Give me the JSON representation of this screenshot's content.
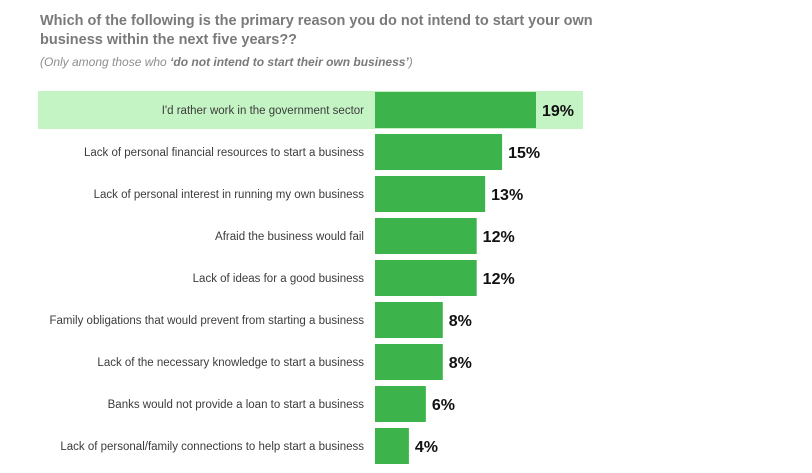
{
  "header": {
    "title": "Which of the following is the primary reason you do not intend to start your own business within the next five years??",
    "subtitle_prefix": "(Only among those who ",
    "subtitle_emphasis": "‘do not intend to start their own business’",
    "subtitle_suffix": ")"
  },
  "colors": {
    "bar": "#3cb44b",
    "highlight_band": "#c4f3c4"
  },
  "chart_data": {
    "type": "bar",
    "orientation": "horizontal",
    "categories": [
      "I'd rather work in the government sector",
      "Lack of personal financial resources to start a business",
      "Lack of personal interest in running my own business",
      "Afraid the business would fail",
      "Lack of ideas for a good business",
      "Family obligations that would prevent from starting a business",
      "Lack of the necessary knowledge to start a business",
      "Banks would not provide a loan to start a business",
      "Lack of personal/family connections to help start a business"
    ],
    "values": [
      19,
      15,
      13,
      12,
      12,
      8,
      8,
      6,
      4
    ],
    "value_labels": [
      "19%",
      "15%",
      "13%",
      "12%",
      "12%",
      "8%",
      "8%",
      "6%",
      "4%"
    ],
    "unit": "%",
    "highlighted_index": 0,
    "xlim": [
      0,
      20
    ],
    "grid": false,
    "legend": "none"
  }
}
